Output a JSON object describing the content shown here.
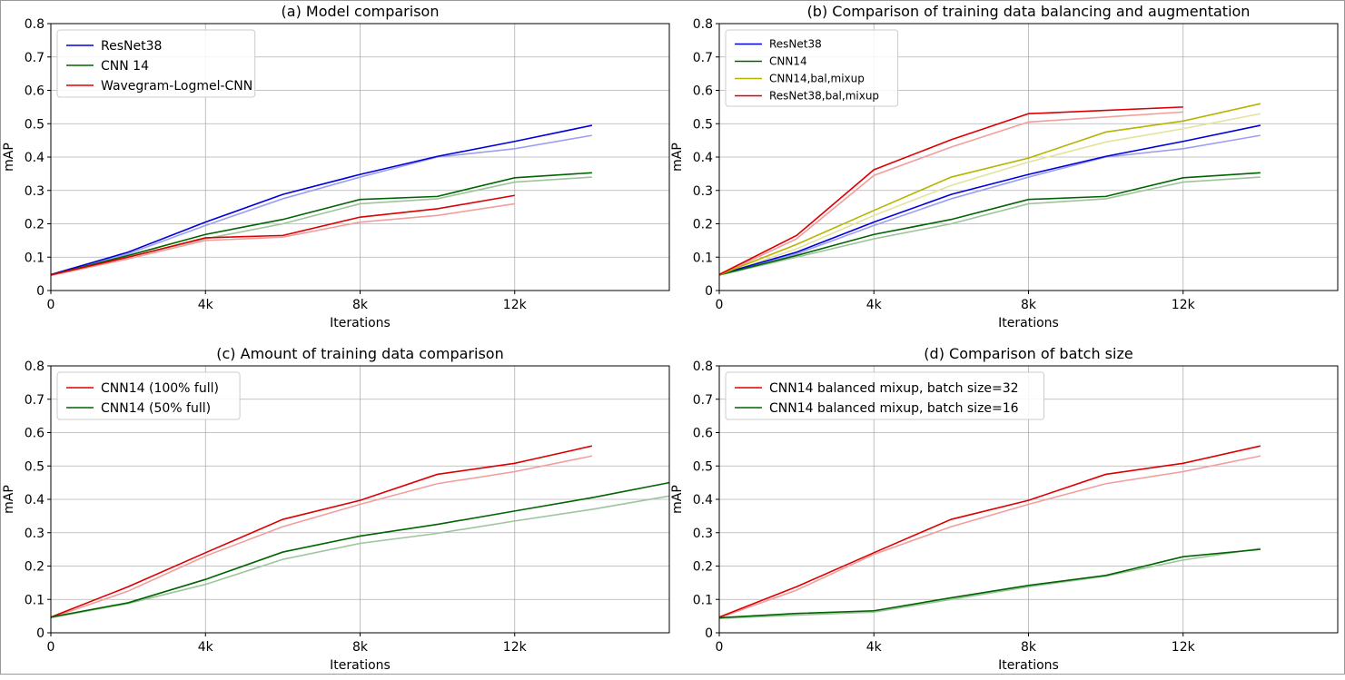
{
  "chart_data": [
    {
      "type": "line",
      "title": "(a) Model comparison",
      "xlabel": "Iterations",
      "ylabel": "mAP",
      "xlim": [
        0,
        16000
      ],
      "ylim": [
        0,
        0.8
      ],
      "xticks": [
        0,
        4000,
        8000,
        12000
      ],
      "xtick_labels": [
        "0",
        "4k",
        "8k",
        "12k"
      ],
      "yticks": [
        0,
        0.1,
        0.2,
        0.3,
        0.4,
        0.5,
        0.6,
        0.7,
        0.8
      ],
      "ytick_labels": [
        "0",
        "0.1",
        "0.2",
        "0.3",
        "0.4",
        "0.5",
        "0.6",
        "0.7",
        "0.8"
      ],
      "grid": true,
      "legend_position": "top-left",
      "series": [
        {
          "name": "ResNet38",
          "color": "#0000dd",
          "x": [
            0,
            2000,
            4000,
            6000,
            8000,
            10000,
            12000,
            14000
          ],
          "values": [
            0.048,
            0.115,
            0.205,
            0.288,
            0.348,
            0.402,
            0.447,
            0.495
          ],
          "faded_values": [
            0.046,
            0.11,
            0.195,
            0.275,
            0.34,
            0.4,
            0.425,
            0.465
          ]
        },
        {
          "name": "CNN 14",
          "color": "#006400",
          "x": [
            0,
            2000,
            4000,
            6000,
            8000,
            10000,
            12000,
            14000
          ],
          "values": [
            0.047,
            0.105,
            0.168,
            0.213,
            0.273,
            0.282,
            0.338,
            0.353
          ],
          "faded_values": [
            0.046,
            0.1,
            0.155,
            0.2,
            0.26,
            0.275,
            0.325,
            0.34
          ]
        },
        {
          "name": "Wavegram-Logmel-CNN",
          "color": "#dd0000",
          "x": [
            0,
            2000,
            4000,
            6000,
            8000,
            10000,
            12000
          ],
          "values": [
            0.047,
            0.1,
            0.158,
            0.165,
            0.22,
            0.245,
            0.285
          ],
          "faded_values": [
            0.045,
            0.095,
            0.15,
            0.16,
            0.205,
            0.225,
            0.26
          ]
        }
      ]
    },
    {
      "type": "line",
      "title": "(b) Comparison of training data balancing and augmentation",
      "xlabel": "Iterations",
      "ylabel": "mAP",
      "xlim": [
        0,
        16000
      ],
      "ylim": [
        0,
        0.8
      ],
      "xticks": [
        0,
        4000,
        8000,
        12000
      ],
      "xtick_labels": [
        "0",
        "4k",
        "8k",
        "12k"
      ],
      "yticks": [
        0,
        0.1,
        0.2,
        0.3,
        0.4,
        0.5,
        0.6,
        0.7,
        0.8
      ],
      "ytick_labels": [
        "0",
        "0.1",
        "0.2",
        "0.3",
        "0.4",
        "0.5",
        "0.6",
        "0.7",
        "0.8"
      ],
      "grid": true,
      "legend_position": "top-left",
      "small_legend": true,
      "series": [
        {
          "name": "ResNet38",
          "color": "#0000dd",
          "x": [
            0,
            2000,
            4000,
            6000,
            8000,
            10000,
            12000,
            14000
          ],
          "values": [
            0.048,
            0.115,
            0.205,
            0.288,
            0.348,
            0.402,
            0.447,
            0.495
          ],
          "faded_values": [
            0.046,
            0.11,
            0.195,
            0.275,
            0.34,
            0.4,
            0.425,
            0.465
          ]
        },
        {
          "name": "CNN14",
          "color": "#006400",
          "x": [
            0,
            2000,
            4000,
            6000,
            8000,
            10000,
            12000,
            14000
          ],
          "values": [
            0.047,
            0.105,
            0.168,
            0.213,
            0.273,
            0.282,
            0.338,
            0.353
          ],
          "faded_values": [
            0.046,
            0.1,
            0.155,
            0.2,
            0.26,
            0.275,
            0.325,
            0.34
          ]
        },
        {
          "name": "CNN14,bal,mixup",
          "color": "#b5b500",
          "x": [
            0,
            2000,
            4000,
            6000,
            8000,
            10000,
            12000,
            14000
          ],
          "values": [
            0.047,
            0.138,
            0.24,
            0.34,
            0.397,
            0.475,
            0.508,
            0.56
          ],
          "faded_values": [
            0.045,
            0.125,
            0.225,
            0.315,
            0.385,
            0.445,
            0.485,
            0.53
          ]
        },
        {
          "name": "ResNet38,bal,mixup",
          "color": "#dd0000",
          "x": [
            0,
            2000,
            4000,
            6000,
            8000,
            10000,
            12000
          ],
          "values": [
            0.048,
            0.165,
            0.362,
            0.452,
            0.53,
            0.54,
            0.55
          ],
          "faded_values": [
            0.046,
            0.155,
            0.345,
            0.43,
            0.505,
            0.52,
            0.535
          ]
        }
      ]
    },
    {
      "type": "line",
      "title": "(c) Amount of training data comparison",
      "xlabel": "Iterations",
      "ylabel": "mAP",
      "xlim": [
        0,
        16000
      ],
      "ylim": [
        0,
        0.8
      ],
      "xticks": [
        0,
        4000,
        8000,
        12000
      ],
      "xtick_labels": [
        "0",
        "4k",
        "8k",
        "12k"
      ],
      "yticks": [
        0,
        0.1,
        0.2,
        0.3,
        0.4,
        0.5,
        0.6,
        0.7,
        0.8
      ],
      "ytick_labels": [
        "0",
        "0.1",
        "0.2",
        "0.3",
        "0.4",
        "0.5",
        "0.6",
        "0.7",
        "0.8"
      ],
      "grid": true,
      "legend_position": "top-left",
      "series": [
        {
          "name": "CNN14 (100% full)",
          "color": "#dd0000",
          "x": [
            0,
            2000,
            4000,
            6000,
            8000,
            10000,
            12000,
            14000
          ],
          "values": [
            0.047,
            0.138,
            0.24,
            0.34,
            0.397,
            0.475,
            0.508,
            0.56
          ],
          "faded_values": [
            0.045,
            0.125,
            0.23,
            0.318,
            0.385,
            0.447,
            0.483,
            0.53
          ]
        },
        {
          "name": "CNN14 (50% full)",
          "color": "#006400",
          "x": [
            0,
            2000,
            4000,
            6000,
            8000,
            10000,
            12000,
            14000,
            16000
          ],
          "values": [
            0.047,
            0.09,
            0.16,
            0.242,
            0.29,
            0.325,
            0.365,
            0.405,
            0.45
          ],
          "faded_values": [
            0.045,
            0.088,
            0.145,
            0.22,
            0.268,
            0.298,
            0.335,
            0.37,
            0.41
          ]
        }
      ]
    },
    {
      "type": "line",
      "title": "(d) Comparison of batch size",
      "xlabel": "Iterations",
      "ylabel": "mAP",
      "xlim": [
        0,
        16000
      ],
      "ylim": [
        0,
        0.8
      ],
      "xticks": [
        0,
        4000,
        8000,
        12000
      ],
      "xtick_labels": [
        "0",
        "4k",
        "8k",
        "12k"
      ],
      "yticks": [
        0,
        0.1,
        0.2,
        0.3,
        0.4,
        0.5,
        0.6,
        0.7,
        0.8
      ],
      "ytick_labels": [
        "0",
        "0.1",
        "0.2",
        "0.3",
        "0.4",
        "0.5",
        "0.6",
        "0.7",
        "0.8"
      ],
      "grid": true,
      "legend_position": "top-left",
      "series": [
        {
          "name": "CNN14 balanced mixup, batch size=32",
          "color": "#dd0000",
          "x": [
            0,
            2000,
            4000,
            6000,
            8000,
            10000,
            12000,
            14000
          ],
          "values": [
            0.047,
            0.138,
            0.24,
            0.34,
            0.397,
            0.475,
            0.508,
            0.56
          ],
          "faded_values": [
            0.045,
            0.128,
            0.235,
            0.318,
            0.385,
            0.447,
            0.483,
            0.53
          ]
        },
        {
          "name": "CNN14 balanced mixup, batch size=16",
          "color": "#006400",
          "x": [
            0,
            2000,
            4000,
            6000,
            8000,
            10000,
            12000,
            14000
          ],
          "values": [
            0.045,
            0.058,
            0.066,
            0.105,
            0.142,
            0.172,
            0.228,
            0.25
          ],
          "faded_values": [
            0.043,
            0.053,
            0.062,
            0.1,
            0.138,
            0.17,
            0.218,
            0.253
          ]
        }
      ]
    }
  ]
}
